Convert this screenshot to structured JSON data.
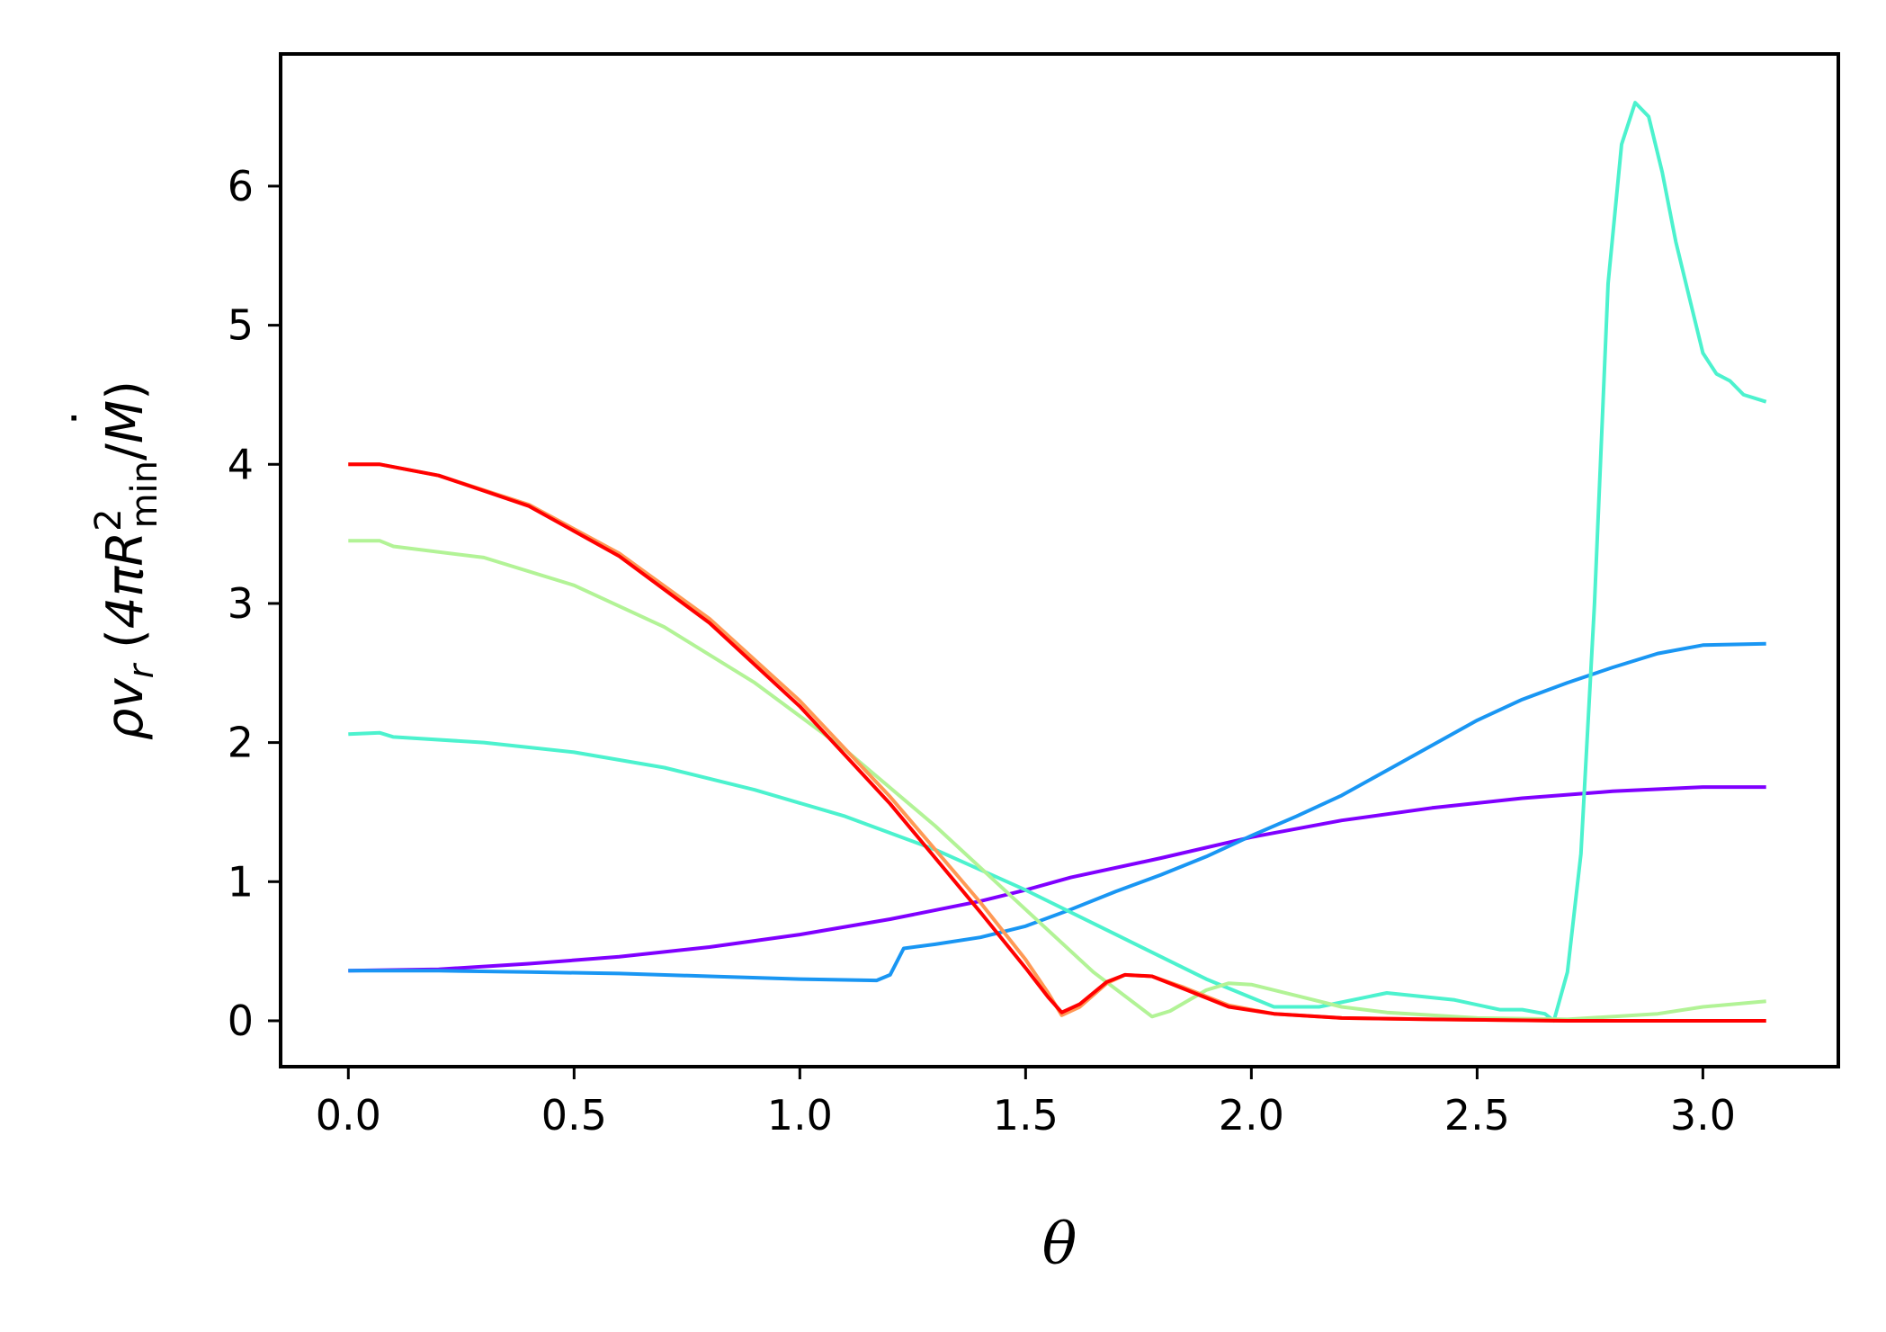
{
  "chart_data": {
    "type": "line",
    "xlabel": "θ",
    "ylabel": "ρv_r (4πR_min^2 / Ṁ)",
    "ylabel_parts": {
      "rho": "ρ",
      "v": "v",
      "r": "r",
      "open": "(",
      "four_pi_r": "4πR",
      "sup2": "2",
      "sub_min": "min",
      "slash_m": "/",
      "mdot": "M",
      "dot": "˙",
      "close": ")"
    },
    "xlim": [
      -0.15,
      3.3
    ],
    "ylim": [
      -0.33,
      6.95
    ],
    "xticks": [
      "0.0",
      "0.5",
      "1.0",
      "1.5",
      "2.0",
      "2.5",
      "3.0"
    ],
    "yticks": [
      "0",
      "1",
      "2",
      "3",
      "4",
      "5",
      "6"
    ],
    "grid": false,
    "series": [
      {
        "color": "#8000ff",
        "x": [
          0,
          0.2,
          0.4,
          0.6,
          0.8,
          1.0,
          1.2,
          1.4,
          1.5,
          1.6,
          1.8,
          2.0,
          2.2,
          2.4,
          2.6,
          2.8,
          3.0,
          3.14
        ],
        "y": [
          0.36,
          0.37,
          0.41,
          0.46,
          0.53,
          0.62,
          0.73,
          0.86,
          0.94,
          1.03,
          1.17,
          1.32,
          1.44,
          1.53,
          1.6,
          1.65,
          1.68,
          1.68
        ]
      },
      {
        "color": "#1996f3",
        "x": [
          0,
          0.2,
          0.4,
          0.6,
          0.8,
          1.0,
          1.17,
          1.2,
          1.23,
          1.3,
          1.4,
          1.5,
          1.6,
          1.7,
          1.8,
          1.9,
          2.0,
          2.1,
          2.2,
          2.3,
          2.4,
          2.5,
          2.6,
          2.7,
          2.8,
          2.9,
          3.0,
          3.14
        ],
        "y": [
          0.36,
          0.36,
          0.35,
          0.34,
          0.32,
          0.3,
          0.29,
          0.33,
          0.52,
          0.55,
          0.6,
          0.68,
          0.8,
          0.93,
          1.05,
          1.18,
          1.33,
          1.47,
          1.62,
          1.8,
          1.98,
          2.16,
          2.31,
          2.43,
          2.54,
          2.64,
          2.7,
          2.71
        ]
      },
      {
        "color": "#4cf2ce",
        "x": [
          0,
          0.07,
          0.1,
          0.3,
          0.5,
          0.7,
          0.9,
          1.1,
          1.3,
          1.5,
          1.7,
          1.9,
          2.05,
          2.15,
          2.3,
          2.45,
          2.55,
          2.6,
          2.65,
          2.67,
          2.7,
          2.73,
          2.76,
          2.79,
          2.82,
          2.85,
          2.88,
          2.91,
          2.94,
          2.97,
          3.0,
          3.03,
          3.06,
          3.09,
          3.14
        ],
        "y": [
          2.06,
          2.07,
          2.04,
          2.0,
          1.93,
          1.82,
          1.66,
          1.47,
          1.23,
          0.94,
          0.62,
          0.3,
          0.1,
          0.1,
          0.2,
          0.15,
          0.08,
          0.08,
          0.05,
          0.0,
          0.35,
          1.2,
          3.0,
          5.3,
          6.3,
          6.6,
          6.5,
          6.1,
          5.6,
          5.2,
          4.8,
          4.65,
          4.6,
          4.5,
          4.45
        ]
      },
      {
        "color": "#b2f396",
        "x": [
          0,
          0.07,
          0.1,
          0.3,
          0.5,
          0.7,
          0.9,
          1.1,
          1.3,
          1.5,
          1.65,
          1.78,
          1.82,
          1.9,
          1.95,
          2.0,
          2.1,
          2.2,
          2.3,
          2.5,
          2.7,
          2.9,
          3.0,
          3.14
        ],
        "y": [
          3.45,
          3.45,
          3.41,
          3.33,
          3.13,
          2.83,
          2.43,
          1.95,
          1.4,
          0.8,
          0.35,
          0.03,
          0.07,
          0.22,
          0.27,
          0.26,
          0.18,
          0.1,
          0.06,
          0.02,
          0.01,
          0.05,
          0.1,
          0.14
        ]
      },
      {
        "color": "#ff9955",
        "x": [
          0,
          0.07,
          0.2,
          0.4,
          0.6,
          0.8,
          1.0,
          1.2,
          1.4,
          1.5,
          1.55,
          1.58,
          1.62,
          1.68,
          1.72,
          1.78,
          1.85,
          1.95,
          2.05,
          2.2,
          2.4,
          2.7,
          3.0,
          3.14
        ],
        "y": [
          4.0,
          4.0,
          3.92,
          3.71,
          3.36,
          2.89,
          2.3,
          1.61,
          0.85,
          0.44,
          0.2,
          0.04,
          0.1,
          0.27,
          0.33,
          0.32,
          0.24,
          0.11,
          0.05,
          0.02,
          0.01,
          0.0,
          0.0,
          0.0
        ]
      },
      {
        "color": "#ff0000",
        "x": [
          0,
          0.07,
          0.2,
          0.4,
          0.6,
          0.8,
          1.0,
          1.2,
          1.4,
          1.5,
          1.55,
          1.58,
          1.62,
          1.68,
          1.72,
          1.78,
          1.85,
          1.95,
          2.05,
          2.2,
          2.4,
          2.7,
          3.0,
          3.14
        ],
        "y": [
          4.0,
          4.0,
          3.92,
          3.7,
          3.34,
          2.86,
          2.26,
          1.56,
          0.78,
          0.38,
          0.17,
          0.06,
          0.12,
          0.28,
          0.33,
          0.32,
          0.23,
          0.1,
          0.05,
          0.02,
          0.01,
          0.0,
          0.0,
          0.0
        ]
      }
    ]
  }
}
